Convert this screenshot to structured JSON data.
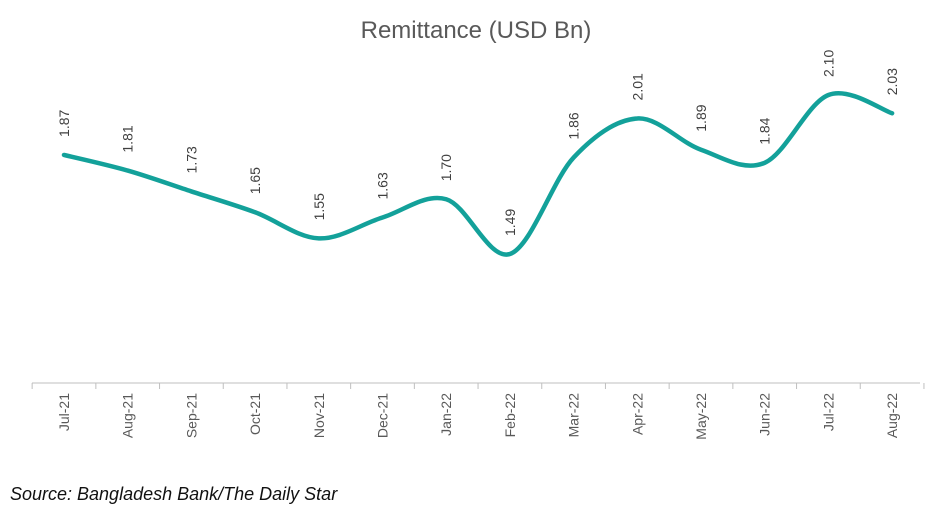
{
  "chart_data": {
    "type": "line",
    "title": "Remittance (USD Bn)",
    "xlabel": "",
    "ylabel": "",
    "categories": [
      "Jul-21",
      "Aug-21",
      "Sep-21",
      "Oct-21",
      "Nov-21",
      "Dec-21",
      "Jan-22",
      "Feb-22",
      "Mar-22",
      "Apr-22",
      "May-22",
      "Jun-22",
      "Jul-22",
      "Aug-22"
    ],
    "series": [
      {
        "values": [
          1.87,
          1.81,
          1.73,
          1.65,
          1.55,
          1.63,
          1.7,
          1.49,
          1.86,
          2.01,
          1.89,
          1.84,
          2.1,
          2.03
        ]
      }
    ],
    "data_labels": [
      "1.87",
      "1.81",
      "1.73",
      "1.65",
      "1.55",
      "1.63",
      "1.70",
      "1.49",
      "1.86",
      "2.01",
      "1.89",
      "1.84",
      "2.10",
      "2.03"
    ],
    "grid": false,
    "legend": "none",
    "smoothed": true,
    "line_color": "#13a19a"
  },
  "source": "Source: Bangladesh Bank/The Daily Star"
}
